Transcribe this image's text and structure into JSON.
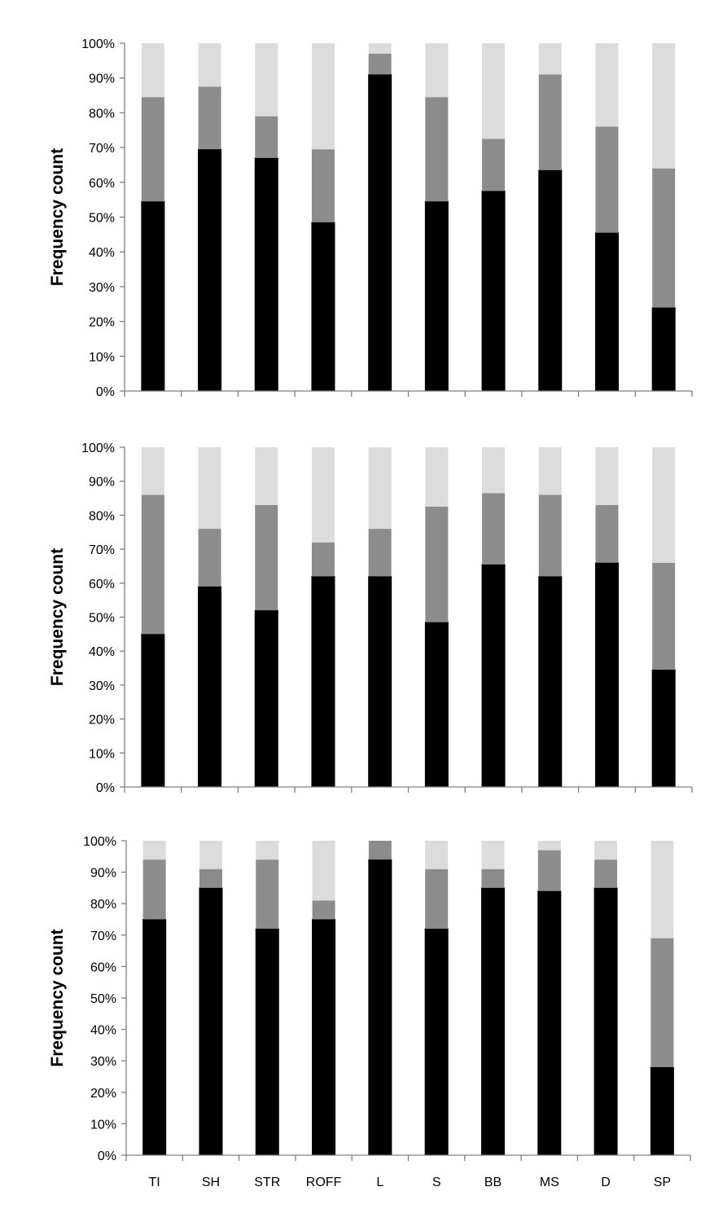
{
  "chart_data": [
    {
      "type": "bar",
      "stacked": true,
      "percent": true,
      "ylabel": "Frequency count",
      "xlabel": "",
      "ylim": [
        0,
        100
      ],
      "yticks": [
        "0%",
        "10%",
        "20%",
        "30%",
        "40%",
        "50%",
        "60%",
        "70%",
        "80%",
        "90%",
        "100%"
      ],
      "categories": [
        "TI",
        "SH",
        "STR",
        "ROFF",
        "L",
        "S",
        "BB",
        "MS",
        "D",
        "SP"
      ],
      "show_category_labels": false,
      "grid": false,
      "legend": "none",
      "colors": [
        "#000000",
        "#8c8c8c",
        "#dcdcdc"
      ],
      "series": [
        {
          "values": [
            54.5,
            69.5,
            67,
            48.5,
            91,
            54.5,
            57.5,
            63.5,
            45.5,
            24
          ]
        },
        {
          "values": [
            30,
            18,
            12,
            21,
            6,
            30,
            15,
            27.5,
            30.5,
            40
          ]
        },
        {
          "values": [
            15.5,
            12.5,
            21,
            30.5,
            3,
            15.5,
            27.5,
            9,
            24,
            36
          ]
        }
      ]
    },
    {
      "type": "bar",
      "stacked": true,
      "percent": true,
      "ylabel": "Frequency count",
      "xlabel": "",
      "ylim": [
        0,
        100
      ],
      "yticks": [
        "0%",
        "10%",
        "20%",
        "30%",
        "40%",
        "50%",
        "60%",
        "70%",
        "80%",
        "90%",
        "100%"
      ],
      "categories": [
        "TI",
        "SH",
        "STR",
        "ROFF",
        "L",
        "S",
        "BB",
        "MS",
        "D",
        "SP"
      ],
      "show_category_labels": false,
      "grid": false,
      "legend": "none",
      "colors": [
        "#000000",
        "#8c8c8c",
        "#dcdcdc"
      ],
      "series": [
        {
          "values": [
            45,
            59,
            52,
            62,
            62,
            48.5,
            65.5,
            62,
            66,
            34.5
          ]
        },
        {
          "values": [
            41,
            17,
            31,
            10,
            14,
            34,
            21,
            24,
            17,
            31.5
          ]
        },
        {
          "values": [
            14,
            24,
            17,
            28,
            24,
            17.5,
            13.5,
            14,
            17,
            34
          ]
        }
      ]
    },
    {
      "type": "bar",
      "stacked": true,
      "percent": true,
      "ylabel": "Frequency count",
      "xlabel": "",
      "ylim": [
        0,
        100
      ],
      "yticks": [
        "0%",
        "10%",
        "20%",
        "30%",
        "40%",
        "50%",
        "60%",
        "70%",
        "80%",
        "90%",
        "100%"
      ],
      "categories": [
        "TI",
        "SH",
        "STR",
        "ROFF",
        "L",
        "S",
        "BB",
        "MS",
        "D",
        "SP"
      ],
      "show_category_labels": true,
      "grid": false,
      "legend": "none",
      "colors": [
        "#000000",
        "#8c8c8c",
        "#dcdcdc"
      ],
      "series": [
        {
          "values": [
            75,
            85,
            72,
            75,
            94,
            72,
            85,
            84,
            85,
            28
          ]
        },
        {
          "values": [
            19,
            6,
            22,
            6,
            6,
            19,
            6,
            13,
            9,
            41
          ]
        },
        {
          "values": [
            6,
            9,
            6,
            19,
            0,
            9,
            9,
            3,
            6,
            31
          ]
        }
      ]
    }
  ]
}
